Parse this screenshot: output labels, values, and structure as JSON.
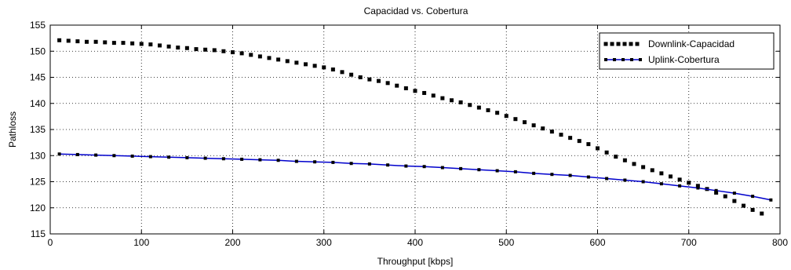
{
  "chart_data": {
    "type": "line",
    "title": "Capacidad vs. Cobertura",
    "xlabel": "Throughput [kbps]",
    "ylabel": "Pathloss",
    "xlim": [
      0,
      800
    ],
    "ylim": [
      115,
      155
    ],
    "xticks": [
      0,
      100,
      200,
      300,
      400,
      500,
      600,
      700,
      800
    ],
    "yticks": [
      115,
      120,
      125,
      130,
      135,
      140,
      145,
      150,
      155
    ],
    "grid": true,
    "legend_position": "top-right",
    "series": [
      {
        "name": "Downlink-Capacidad",
        "style": "dotted-square-markers",
        "color": "#000000",
        "x": [
          10,
          20,
          30,
          40,
          50,
          60,
          70,
          80,
          90,
          100,
          110,
          120,
          130,
          140,
          150,
          160,
          170,
          180,
          190,
          200,
          210,
          220,
          230,
          240,
          250,
          260,
          270,
          280,
          290,
          300,
          310,
          320,
          330,
          340,
          350,
          360,
          370,
          380,
          390,
          400,
          410,
          420,
          430,
          440,
          450,
          460,
          470,
          480,
          490,
          500,
          510,
          520,
          530,
          540,
          550,
          560,
          570,
          580,
          590,
          600,
          610,
          620,
          630,
          640,
          650,
          660,
          670,
          680,
          690,
          700,
          710,
          720,
          730,
          740,
          750,
          760,
          770,
          780
        ],
        "y": [
          152.1,
          152.0,
          151.9,
          151.8,
          151.8,
          151.7,
          151.6,
          151.6,
          151.5,
          151.4,
          151.3,
          151.1,
          150.9,
          150.7,
          150.6,
          150.4,
          150.3,
          150.2,
          150.0,
          149.8,
          149.6,
          149.3,
          149.0,
          148.7,
          148.4,
          148.1,
          147.8,
          147.5,
          147.2,
          146.9,
          146.5,
          146.0,
          145.5,
          145.0,
          144.6,
          144.3,
          143.9,
          143.4,
          142.9,
          142.4,
          142.0,
          141.5,
          141.0,
          140.6,
          140.2,
          139.7,
          139.2,
          138.7,
          138.2,
          137.6,
          137.0,
          136.4,
          135.8,
          135.2,
          134.6,
          134.0,
          133.4,
          132.8,
          132.2,
          131.4,
          130.6,
          129.8,
          129.1,
          128.4,
          127.8,
          127.2,
          126.6,
          126.0,
          125.4,
          124.8,
          124.2,
          123.6,
          122.9,
          122.2,
          121.3,
          120.4,
          119.6,
          118.9
        ]
      },
      {
        "name": "Uplink-Cobertura",
        "style": "solid-square-markers",
        "color": "#0000cc",
        "x": [
          10,
          30,
          50,
          70,
          90,
          110,
          130,
          150,
          170,
          190,
          210,
          230,
          250,
          270,
          290,
          310,
          330,
          350,
          370,
          390,
          410,
          430,
          450,
          470,
          490,
          510,
          530,
          550,
          570,
          590,
          610,
          630,
          650,
          670,
          690,
          710,
          730,
          750,
          770,
          790
        ],
        "y": [
          130.3,
          130.2,
          130.1,
          130.0,
          129.9,
          129.8,
          129.7,
          129.6,
          129.5,
          129.4,
          129.3,
          129.2,
          129.1,
          128.9,
          128.8,
          128.7,
          128.5,
          128.4,
          128.2,
          128.0,
          127.9,
          127.7,
          127.5,
          127.3,
          127.1,
          126.9,
          126.6,
          126.4,
          126.2,
          125.9,
          125.6,
          125.3,
          125.0,
          124.6,
          124.2,
          123.8,
          123.3,
          122.8,
          122.2,
          121.5
        ]
      }
    ]
  }
}
